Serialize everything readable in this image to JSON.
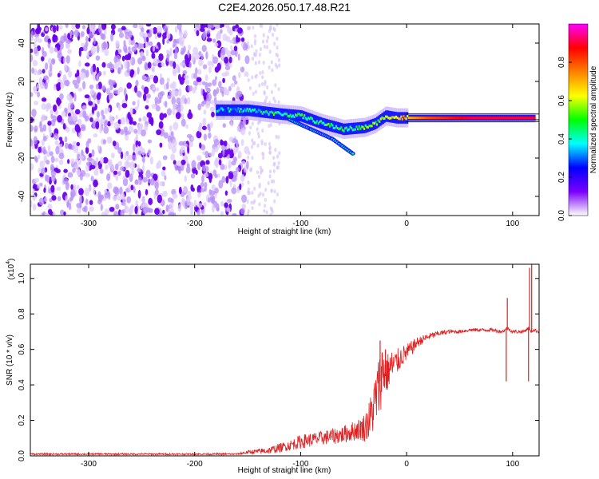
{
  "figure_title": "C2E4.2026.050.17.48.R21",
  "chart_data": [
    {
      "type": "heatmap",
      "title": "C2E4.2026.050.17.48.R21",
      "xlabel": "Height of straight line (km)",
      "ylabel": "Frequency (Hz)",
      "xlim": [
        -355,
        125
      ],
      "ylim": [
        -50,
        50
      ],
      "xticks": [
        -300,
        -200,
        -100,
        0,
        100
      ],
      "yticks": [
        -40,
        -20,
        0,
        20,
        40
      ],
      "grid": false,
      "colorbar": {
        "label": "Normalized spectral amplitude",
        "range": [
          0.0,
          1.0
        ],
        "ticks": [
          0.0,
          0.2,
          0.4,
          0.6,
          0.8
        ],
        "tick_labels": [
          "0.0",
          "0.2",
          "0.4",
          "0.6",
          "0.8"
        ],
        "colormap": [
          "#ffffff",
          "#7a00ff",
          "#0000ff",
          "#00ffff",
          "#00ff00",
          "#ffff00",
          "#ff8000",
          "#ff0000",
          "#ff00ff"
        ]
      },
      "noise_region": {
        "x_range": [
          -355,
          -150
        ],
        "y_range": [
          -50,
          50
        ],
        "amplitude": 0.15
      },
      "signal_ridge": {
        "points": [
          {
            "x": -180,
            "y": 5,
            "amp": 0.35
          },
          {
            "x": -150,
            "y": 5,
            "amp": 0.4
          },
          {
            "x": -120,
            "y": 3,
            "amp": 0.45
          },
          {
            "x": -100,
            "y": 2,
            "amp": 0.45
          },
          {
            "x": -80,
            "y": -2,
            "amp": 0.45
          },
          {
            "x": -60,
            "y": -5,
            "amp": 0.45
          },
          {
            "x": -40,
            "y": -4,
            "amp": 0.5
          },
          {
            "x": -30,
            "y": -2,
            "amp": 0.55
          },
          {
            "x": -20,
            "y": 2,
            "amp": 0.6
          },
          {
            "x": -10,
            "y": 1,
            "amp": 0.65
          },
          {
            "x": 0,
            "y": 1,
            "amp": 0.7
          },
          {
            "x": 20,
            "y": 1,
            "amp": 0.8
          },
          {
            "x": 60,
            "y": 1,
            "amp": 0.9
          },
          {
            "x": 100,
            "y": 1,
            "amp": 0.9
          },
          {
            "x": 120,
            "y": 1,
            "amp": 0.9
          }
        ],
        "lower_branch": [
          {
            "x": -110,
            "y": 0
          },
          {
            "x": -90,
            "y": -5
          },
          {
            "x": -70,
            "y": -10
          },
          {
            "x": -50,
            "y": -18
          }
        ]
      }
    },
    {
      "type": "line",
      "title": "",
      "xlabel": "Height of straight line (km)",
      "ylabel": "SNR (10 * v/v)",
      "ylabel_exponent": "(x10",
      "ylabel_exponent_power": "4",
      "ylabel_exponent_close": ")",
      "xlim": [
        -355,
        125
      ],
      "ylim": [
        0.0,
        1.08
      ],
      "xticks": [
        -300,
        -200,
        -100,
        0,
        100
      ],
      "yticks": [
        0.0,
        0.2,
        0.4,
        0.6,
        0.8,
        1.0
      ],
      "ytick_labels": [
        "0.0",
        "0.2",
        "0.4",
        "0.6",
        "0.8",
        "1.0"
      ],
      "grid": false,
      "series": [
        {
          "name": "SNR",
          "color": "#e02020",
          "x": [
            -355,
            -300,
            -250,
            -200,
            -160,
            -150,
            -130,
            -110,
            -100,
            -80,
            -60,
            -45,
            -40,
            -35,
            -30,
            -25,
            -22,
            -20,
            -15,
            -10,
            -5,
            0,
            10,
            20,
            30,
            40,
            50,
            60,
            70,
            80,
            90,
            95,
            100,
            110,
            115,
            117,
            120,
            125
          ],
          "y": [
            0.01,
            0.01,
            0.01,
            0.01,
            0.01,
            0.02,
            0.03,
            0.06,
            0.08,
            0.1,
            0.12,
            0.15,
            0.16,
            0.2,
            0.3,
            0.42,
            0.5,
            0.45,
            0.5,
            0.52,
            0.56,
            0.58,
            0.64,
            0.67,
            0.69,
            0.7,
            0.7,
            0.71,
            0.71,
            0.71,
            0.7,
            0.72,
            0.7,
            0.7,
            0.72,
            0.7,
            0.71,
            0.7
          ],
          "noise": [
            0.005,
            0.005,
            0.005,
            0.005,
            0.006,
            0.01,
            0.02,
            0.03,
            0.04,
            0.04,
            0.05,
            0.06,
            0.08,
            0.12,
            0.16,
            0.18,
            0.18,
            0.12,
            0.1,
            0.08,
            0.06,
            0.05,
            0.03,
            0.02,
            0.015,
            0.012,
            0.01,
            0.01,
            0.01,
            0.01,
            0.01,
            0.01,
            0.01,
            0.01,
            0.01,
            0.01,
            0.01,
            0.01
          ],
          "spikes": [
            {
              "x": -25,
              "y": 0.65
            },
            {
              "x": -20,
              "y": 0.6
            },
            {
              "x": 94,
              "y": 0.42
            },
            {
              "x": 95,
              "y": 0.89
            },
            {
              "x": 115,
              "y": 0.42
            },
            {
              "x": 116,
              "y": 1.06
            },
            {
              "x": 118,
              "y": 1.08
            }
          ]
        }
      ]
    }
  ]
}
